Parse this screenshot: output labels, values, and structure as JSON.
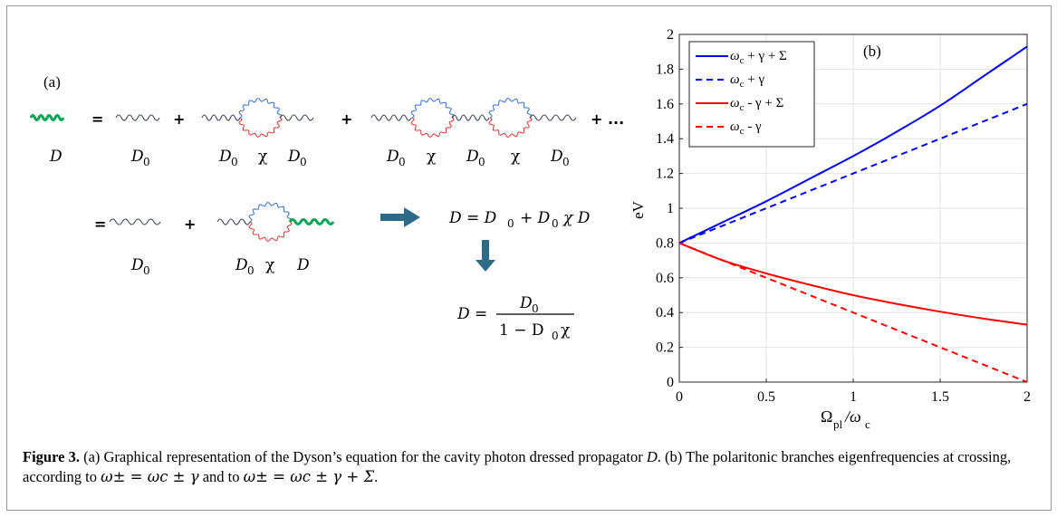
{
  "panel_a": {
    "label": "(a)",
    "plus": "+",
    "equals": "=",
    "ellipsis": "+ ...",
    "D": "D",
    "D0": "D",
    "sub0": "0",
    "chi": "χ",
    "eq1_lhs": "D = D",
    "eq1_plus": "+ D",
    "eq1_chi": "χ D",
    "eq2_lhs": "D =",
    "eq2_num": "D",
    "eq2_den1": "1 − D",
    "eq2_den2": "χ"
  },
  "chart_data": {
    "type": "line",
    "panel_label": "(b)",
    "xlabel_main": "Ω",
    "xlabel_sub1": "pl",
    "xlabel_mid": "/ω",
    "xlabel_sub2": "c",
    "ylabel": "eV",
    "xlim": [
      0,
      2
    ],
    "ylim": [
      0,
      2
    ],
    "xticks": [
      "0",
      "0.5",
      "1",
      "1.5",
      "2"
    ],
    "yticks": [
      "0",
      "0.2",
      "0.4",
      "0.6",
      "0.8",
      "1",
      "1.2",
      "1.4",
      "1.6",
      "1.8",
      "2"
    ],
    "grid": true,
    "legend_position": "top-left",
    "x": [
      0,
      0.25,
      0.5,
      0.75,
      1.0,
      1.25,
      1.5,
      1.75,
      2.0
    ],
    "series": [
      {
        "name": "ω_c + γ + Σ",
        "legend_main": "ω",
        "legend_sub": "c",
        "legend_rest": " + γ + Σ",
        "color": "#0000ff",
        "dash": false,
        "values": [
          0.8,
          0.92,
          1.04,
          1.17,
          1.3,
          1.44,
          1.59,
          1.76,
          1.93
        ]
      },
      {
        "name": "ω_c + γ",
        "legend_main": "ω",
        "legend_sub": "c",
        "legend_rest": " + γ",
        "color": "#0000ff",
        "dash": true,
        "values": [
          0.8,
          0.9,
          1.0,
          1.1,
          1.2,
          1.3,
          1.4,
          1.5,
          1.6
        ]
      },
      {
        "name": "ω_c - γ + Σ",
        "legend_main": "ω",
        "legend_sub": "c",
        "legend_rest": " - γ + Σ",
        "color": "#ff0000",
        "dash": false,
        "values": [
          0.8,
          0.7,
          0.625,
          0.56,
          0.5,
          0.45,
          0.405,
          0.365,
          0.33
        ]
      },
      {
        "name": "ω_c - γ",
        "legend_main": "ω",
        "legend_sub": "c",
        "legend_rest": " - γ",
        "color": "#ff0000",
        "dash": true,
        "values": [
          0.8,
          0.7,
          0.6,
          0.5,
          0.4,
          0.3,
          0.2,
          0.1,
          0.0
        ]
      }
    ]
  },
  "caption": {
    "label": "Figure 3.",
    "text1": " (a) Graphical representation of the Dyson’s equation for the cavity photon dressed propagator ",
    "D": "D",
    "text2": ". (b) The polaritonic branches eigenfrequencies at crossing, according to ",
    "formula1": "ω± = ωc ± γ",
    "text3": " and to ",
    "formula2": "ω± = ωc ± γ + Σ",
    "text4": "."
  }
}
